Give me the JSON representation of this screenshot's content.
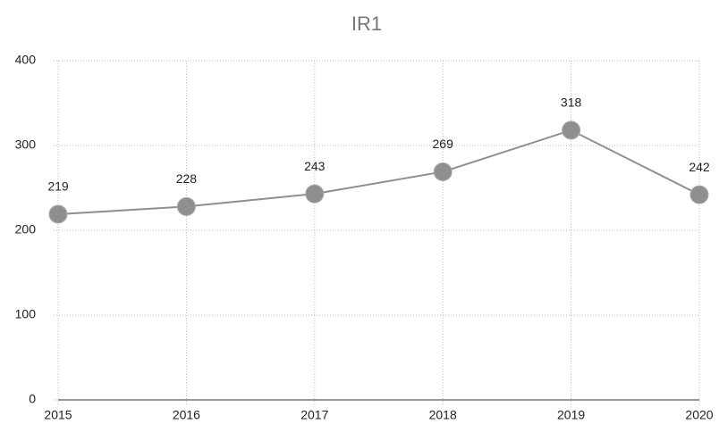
{
  "chart_data": {
    "type": "line",
    "title": "IR1",
    "categories": [
      "2015",
      "2016",
      "2017",
      "2018",
      "2019",
      "2020"
    ],
    "series": [
      {
        "name": "IR1",
        "color": "#8f8f8f",
        "values": [
          219,
          228,
          243,
          269,
          318,
          242
        ]
      }
    ],
    "ylim": [
      0,
      400
    ],
    "yticks": [
      0,
      100,
      200,
      300,
      400
    ],
    "grid": true
  }
}
